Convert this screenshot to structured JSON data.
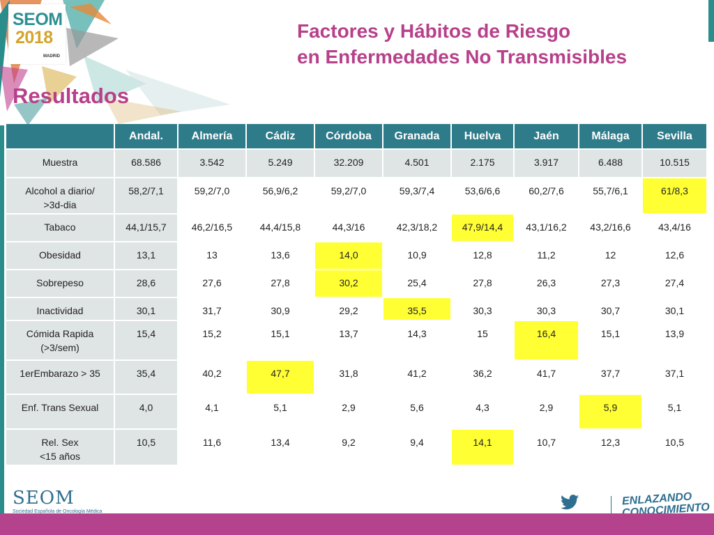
{
  "logo": {
    "name": "SEOM",
    "year": "2018",
    "city": "MADRID"
  },
  "title": {
    "line1": "Factores y Hábitos de Riesgo",
    "line2": "en Enfermedades No Transmisibles"
  },
  "section": "Resultados",
  "table": {
    "columns": [
      "",
      "Andal.",
      "Almería",
      "Cádiz",
      "Córdoba",
      "Granada",
      "Huelva",
      "Jaén",
      "Málaga",
      "Sevilla"
    ],
    "rows": [
      {
        "label": [
          "Muestra"
        ],
        "values": [
          "68.586",
          "3.542",
          "5.249",
          "32.209",
          "4.501",
          "2.175",
          "3.917",
          "6.488",
          "10.515"
        ],
        "highlight": -1
      },
      {
        "label": [
          "Alcohol a diario/",
          ">3d-dia"
        ],
        "values": [
          "58,2/7,1",
          "59,2/7,0",
          "56,9/6,2",
          "59,2/7,0",
          "59,3/7,4",
          "53,6/6,6",
          "60,2/7,6",
          "55,7/6,1",
          "61/8,3"
        ],
        "highlight": 8
      },
      {
        "label": [
          "Tabaco"
        ],
        "values": [
          "44,1/15,7",
          "46,2/16,5",
          "44,4/15,8",
          "44,3/16",
          "42,3/18,2",
          "47,9/14,4",
          "43,1/16,2",
          "43,2/16,6",
          "43,4/16"
        ],
        "highlight": 5
      },
      {
        "label": [
          "Obesidad"
        ],
        "values": [
          "13,1",
          "13",
          "13,6",
          "14,0",
          "10,9",
          "12,8",
          "11,2",
          "12",
          "12,6"
        ],
        "highlight": 3
      },
      {
        "label": [
          "Sobrepeso"
        ],
        "values": [
          "28,6",
          "27,6",
          "27,8",
          "30,2",
          "25,4",
          "27,8",
          "26,3",
          "27,3",
          "27,4"
        ],
        "highlight": 3
      },
      {
        "label": [
          "Inactividad"
        ],
        "values": [
          "30,1",
          "31,7",
          "30,9",
          "29,2",
          "35,5",
          "30,3",
          "30,3",
          "30,7",
          "30,1"
        ],
        "highlight": 4
      },
      {
        "label": [
          "Cómida Rapida",
          "(>3/sem)"
        ],
        "values": [
          "15,4",
          "15,2",
          "15,1",
          "13,7",
          "14,3",
          "15",
          "16,4",
          "15,1",
          "13,9"
        ],
        "highlight": 6
      },
      {
        "label": [
          "1erEmbarazo > 35"
        ],
        "values": [
          "35,4",
          "40,2",
          "47,7",
          "31,8",
          "41,2",
          "36,2",
          "41,7",
          "37,7",
          "37,1"
        ],
        "highlight": 2
      },
      {
        "label": [
          "Enf. Trans Sexual"
        ],
        "values": [
          "4,0",
          "4,1",
          "5,1",
          "2,9",
          "5,6",
          "4,3",
          "2,9",
          "5,9",
          "5,1"
        ],
        "highlight": 7
      },
      {
        "label": [
          "Rel. Sex",
          "<15 años"
        ],
        "values": [
          "10,5",
          "11,6",
          "13,4",
          "9,2",
          "9,4",
          "14,1",
          "10,7",
          "12,3",
          "10,5"
        ],
        "highlight": 5
      }
    ]
  },
  "footer": {
    "brand": "SEOM",
    "brand_sub": "Sociedad Española de Oncología Médica",
    "slogan_line1": "ENLAZANDO",
    "slogan_line2": "CONOCIMIENTO",
    "social_icon": "twitter-icon"
  },
  "colors": {
    "accent": "#b7408a",
    "header": "#2e7b8a",
    "label_bg": "#dfe4e5",
    "highlight": "#ffff33",
    "footer": "#b5428c"
  }
}
